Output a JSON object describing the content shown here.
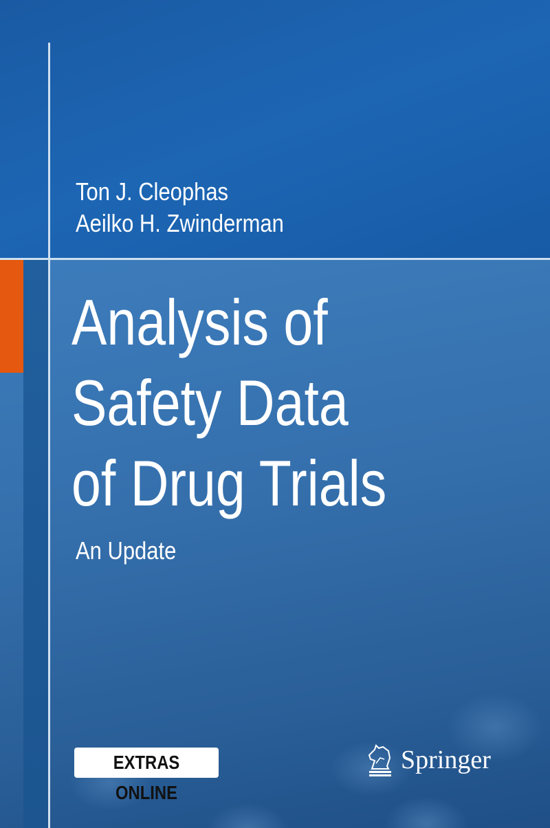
{
  "cover": {
    "authors": [
      "Ton J. Cleophas",
      "Aeilko H. Zwinderman"
    ],
    "title_lines": [
      "Analysis of",
      "Safety Data",
      "of Drug Trials"
    ],
    "subtitle": "An Update",
    "badge": "EXTRAS ONLINE",
    "publisher": "Springer",
    "publisher_logo_icon": "knight-horse-icon",
    "colors": {
      "background": "#1f5fa6",
      "accent": "#e4580f",
      "lines": "#cfe0f0"
    }
  }
}
